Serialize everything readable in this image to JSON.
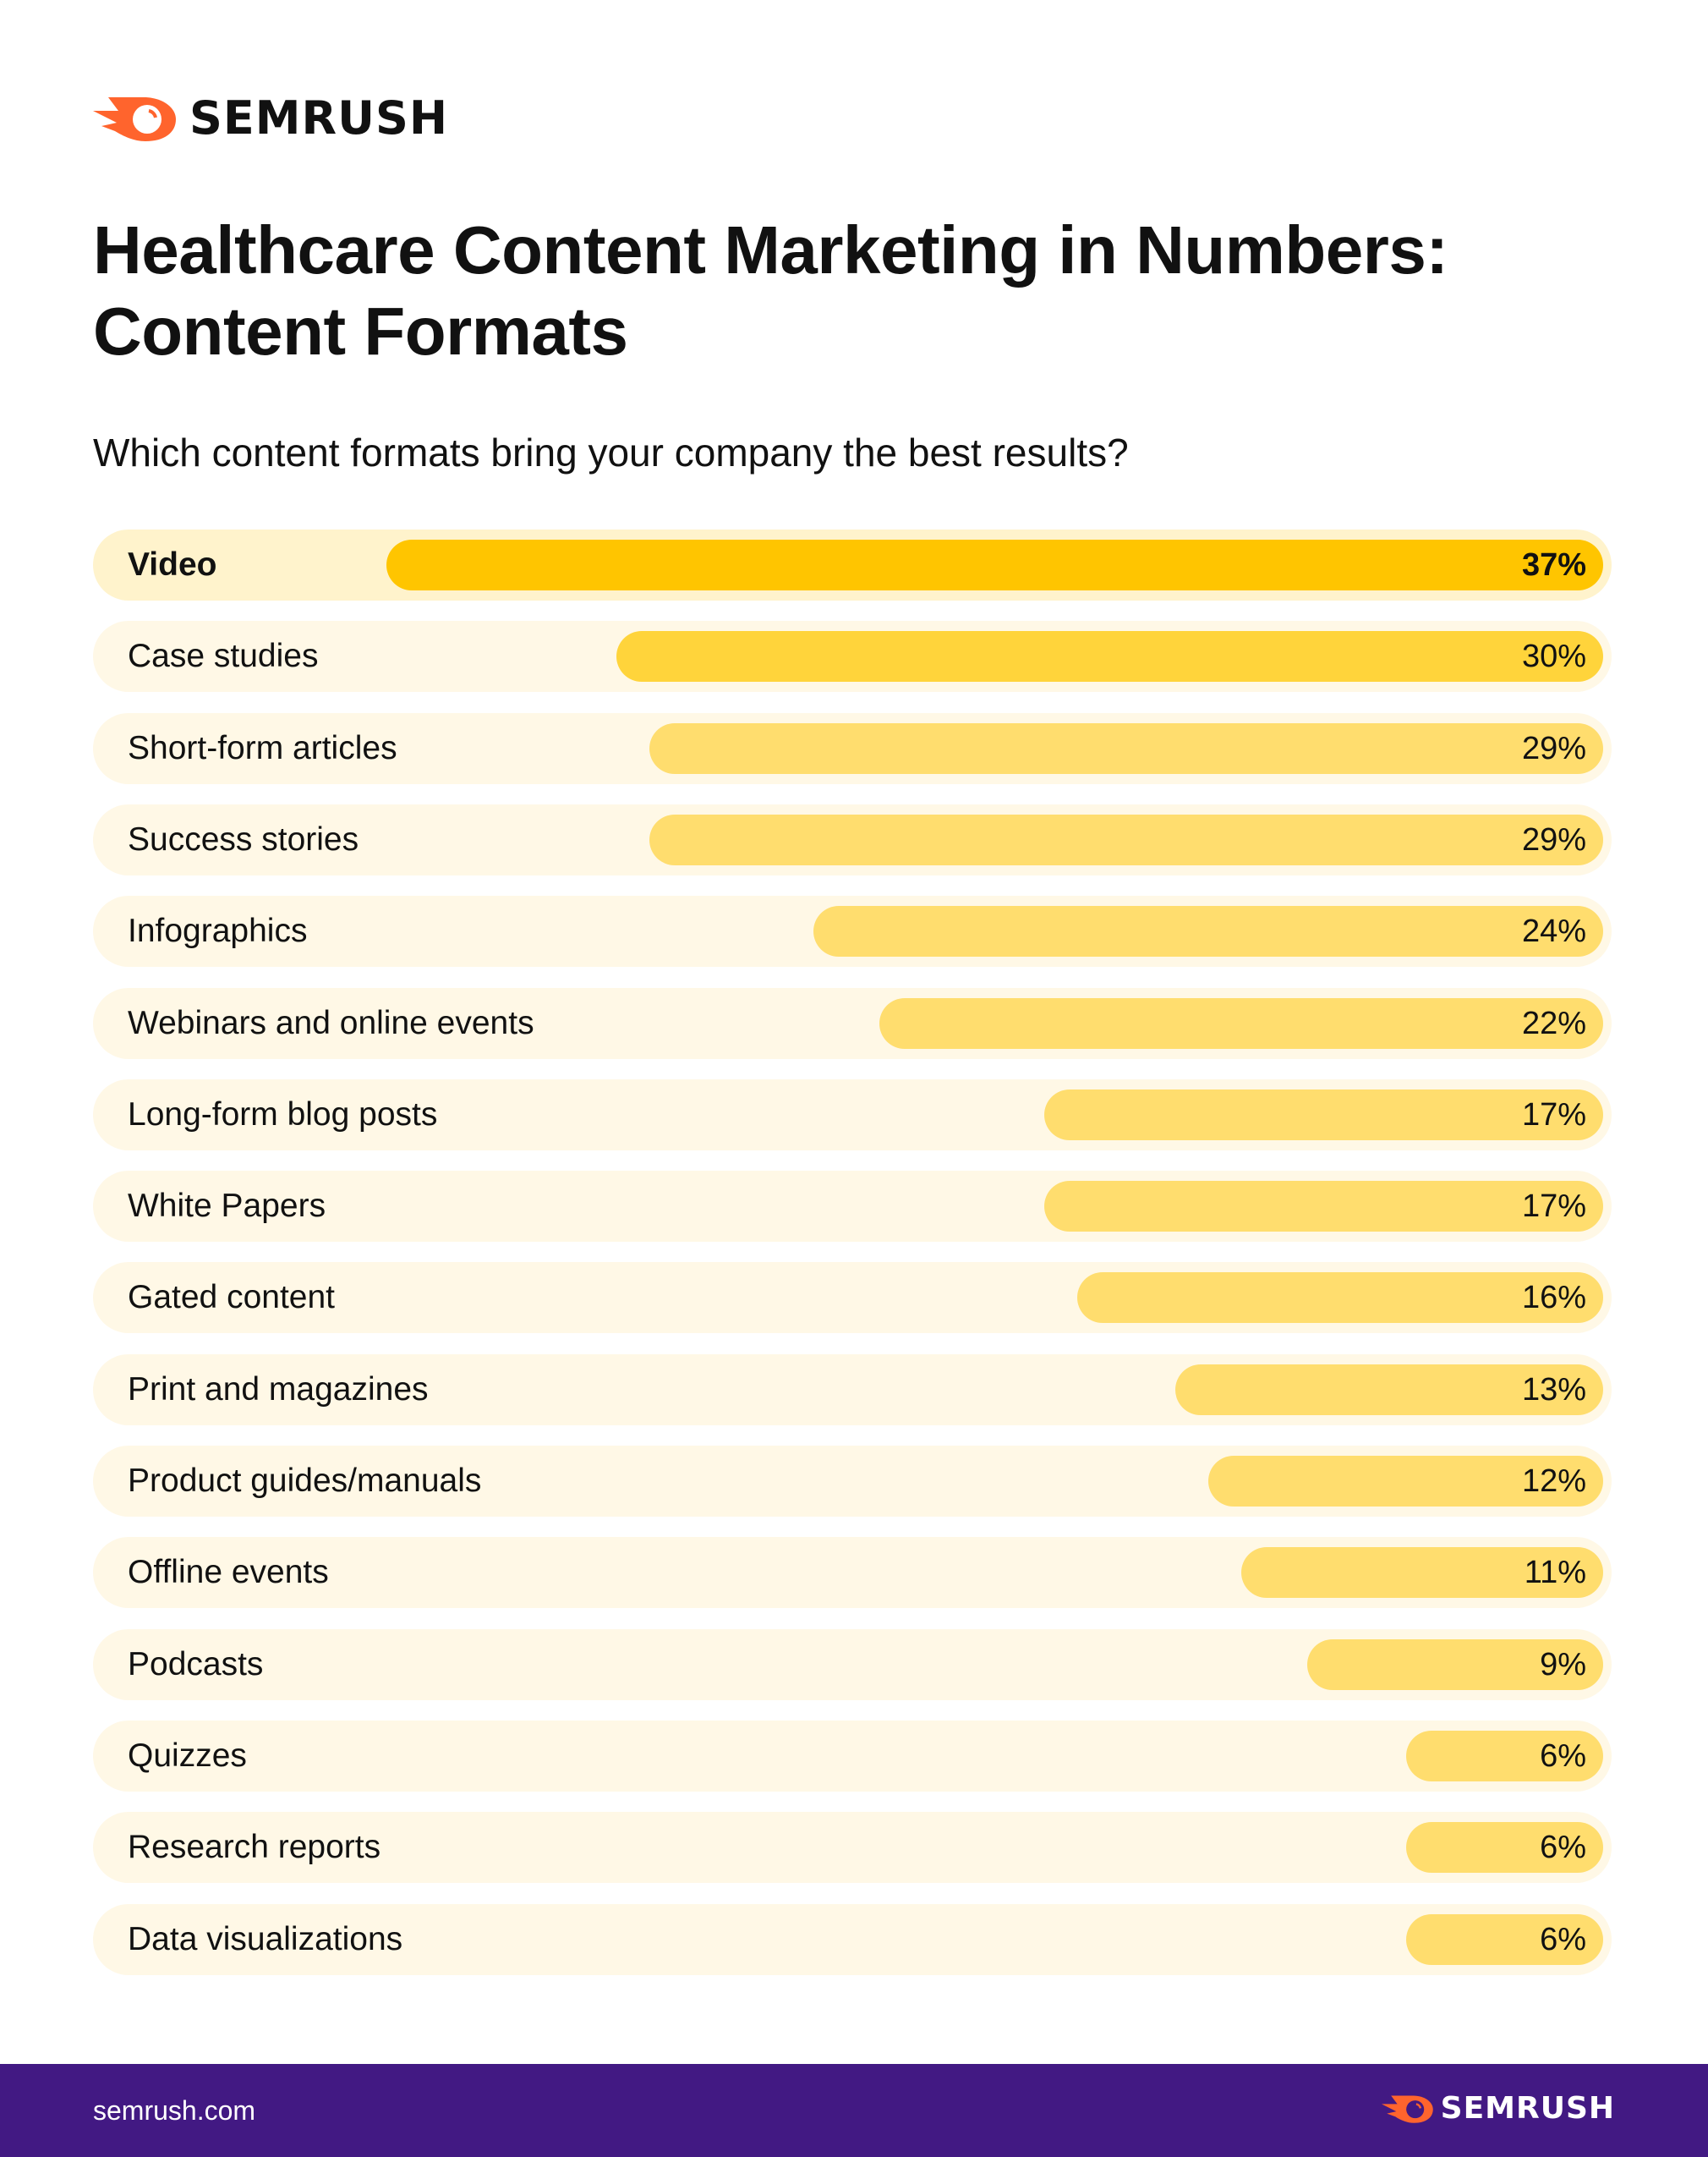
{
  "brand": {
    "name": "SEMRUSH",
    "logo_color": "#FF642D"
  },
  "title_line1": "Healthcare Content Marketing in Numbers:",
  "title_line2": "Content Formats",
  "question": "Which content formats bring your company the best results?",
  "chart_data": {
    "type": "bar",
    "orientation": "horizontal",
    "title": "Which content formats bring your company the best results?",
    "categories": [
      "Video",
      "Case studies",
      "Short-form articles",
      "Success stories",
      "Infographics",
      "Webinars and online events",
      "Long-form blog posts",
      "White Papers",
      "Gated content",
      "Print and magazines",
      "Product guides/manuals",
      "Offline events",
      "Podcasts",
      "Quizzes",
      "Research reports",
      "Data visualizations"
    ],
    "values": [
      37,
      30,
      29,
      29,
      24,
      22,
      17,
      17,
      16,
      13,
      12,
      11,
      9,
      6,
      6,
      6
    ],
    "value_labels": [
      "37%",
      "30%",
      "29%",
      "29%",
      "24%",
      "22%",
      "17%",
      "17%",
      "16%",
      "13%",
      "12%",
      "11%",
      "9%",
      "6%",
      "6%",
      "6%"
    ],
    "unit": "%",
    "colors": {
      "top": "#FFC500",
      "second": "#FFD43B",
      "rest": "#FFDD6E",
      "track": "#FFF8E6",
      "top_track": "#FFF3CC"
    },
    "grid": false
  },
  "footer": {
    "site": "semrush.com",
    "brand": "SEMRUSH",
    "background": "#421983"
  }
}
